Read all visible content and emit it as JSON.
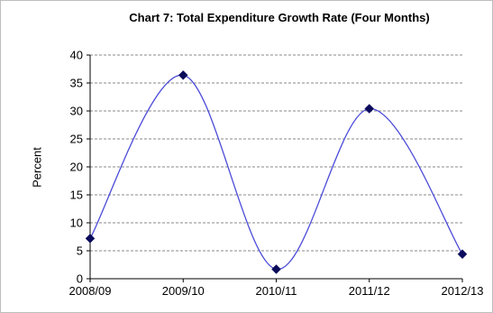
{
  "chart_data": {
    "type": "line",
    "title": "Chart 7: Total Expenditure Growth Rate (Four Months)",
    "xlabel": "",
    "ylabel": "Percent",
    "categories": [
      "2008/09",
      "2009/10",
      "2010/11",
      "2011/12",
      "2012/13"
    ],
    "series": [
      {
        "values": [
          7.2,
          36.4,
          1.7,
          30.4,
          4.4
        ]
      }
    ],
    "ylim": [
      0,
      40
    ],
    "yticks": [
      0,
      5,
      10,
      15,
      20,
      25,
      30,
      35,
      40
    ],
    "grid": true,
    "smooth": true,
    "line_color": "#4b4bd8",
    "marker_color": "#0b0b5c"
  }
}
